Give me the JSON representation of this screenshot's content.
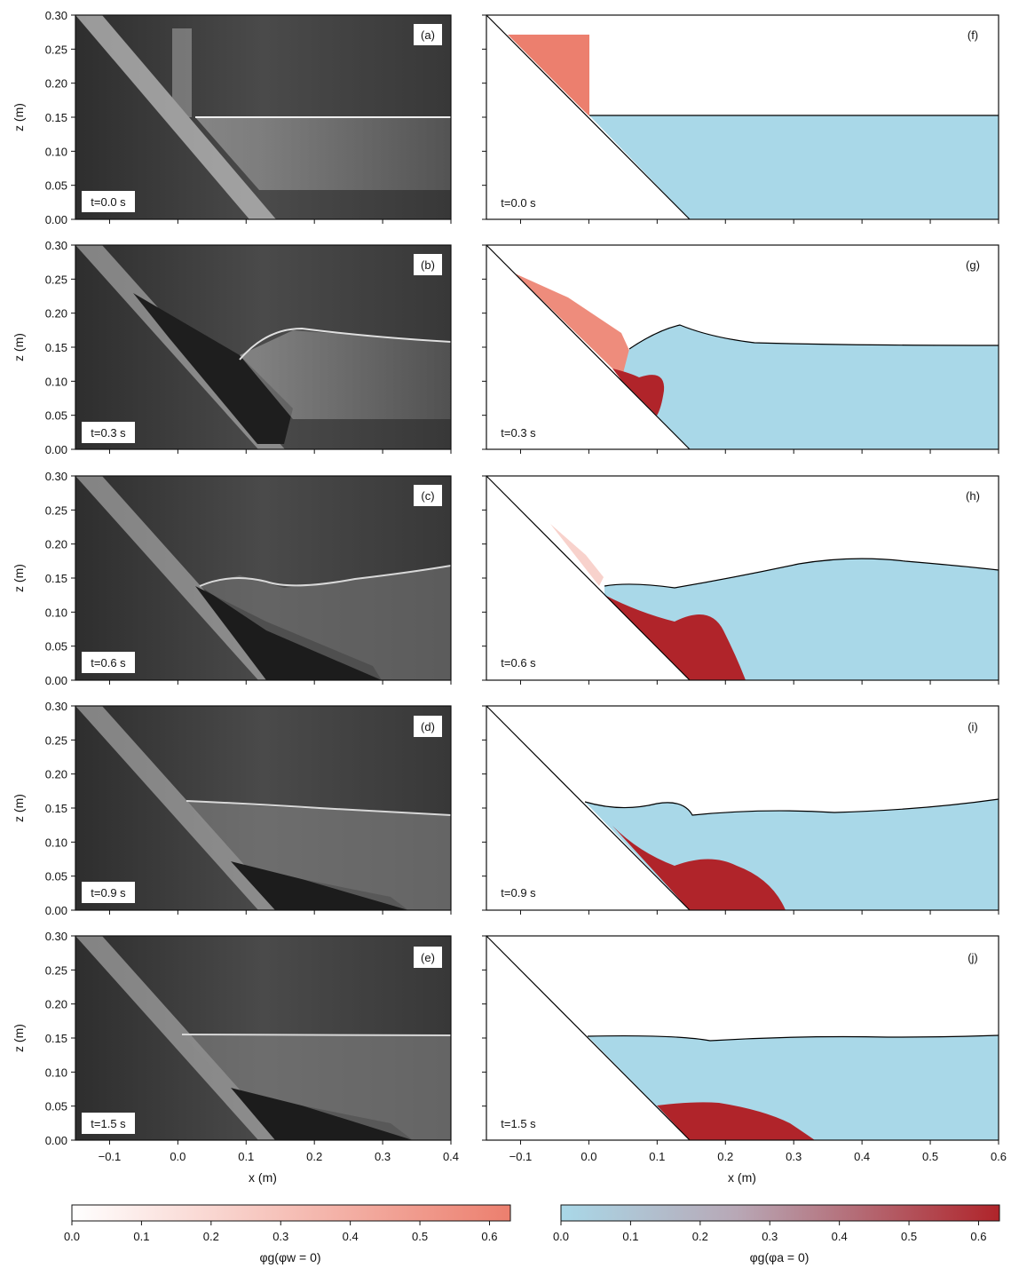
{
  "figure": {
    "xlabel": "x (m)",
    "ylabel": "z (m)",
    "y_ticks": [
      "0.00",
      "0.05",
      "0.10",
      "0.15",
      "0.20",
      "0.25",
      "0.30"
    ],
    "x_ticks_left": [
      "−0.1",
      "0.0",
      "0.1",
      "0.2",
      "0.3",
      "0.4"
    ],
    "x_ticks_right": [
      "−0.1",
      "0.0",
      "0.1",
      "0.2",
      "0.3",
      "0.4",
      "0.5",
      "0.6"
    ],
    "colorbar_ticks": [
      "0.0",
      "0.1",
      "0.2",
      "0.3",
      "0.4",
      "0.5",
      "0.6"
    ],
    "colorbar_left_label": "φg(φw = 0)",
    "colorbar_right_label": "φg(φa = 0)",
    "colors": {
      "water": "#a9d8e8",
      "grain_dry": "#ec7f6e",
      "grain_wet": "#b0242a",
      "photo_bg": "#3a3a3a"
    }
  },
  "panels": [
    {
      "label": "(a)",
      "time": "t=0.0 s"
    },
    {
      "label": "(b)",
      "time": "t=0.3 s"
    },
    {
      "label": "(c)",
      "time": "t=0.6 s"
    },
    {
      "label": "(d)",
      "time": "t=0.9 s"
    },
    {
      "label": "(e)",
      "time": "t=1.5 s"
    },
    {
      "label": "(f)",
      "time": "t=0.0 s"
    },
    {
      "label": "(g)",
      "time": "t=0.3 s"
    },
    {
      "label": "(h)",
      "time": "t=0.6 s"
    },
    {
      "label": "(i)",
      "time": "t=0.9 s"
    },
    {
      "label": "(j)",
      "time": "t=1.5 s"
    }
  ],
  "chart_data": [
    {
      "type": "heatmap",
      "colorbar": "left",
      "label": "φg(φw = 0)",
      "range": [
        0.0,
        0.63
      ],
      "ticks": [
        0.0,
        0.1,
        0.2,
        0.3,
        0.4,
        0.5,
        0.6
      ],
      "colormap": [
        "#ffffff",
        "#ec7f6e"
      ]
    },
    {
      "type": "heatmap",
      "colorbar": "right",
      "label": "φg(φa = 0)",
      "range": [
        0.0,
        0.63
      ],
      "ticks": [
        0.0,
        0.1,
        0.2,
        0.3,
        0.4,
        0.5,
        0.6
      ],
      "colormap": [
        "#a9d8e8",
        "#b0242a"
      ]
    }
  ]
}
